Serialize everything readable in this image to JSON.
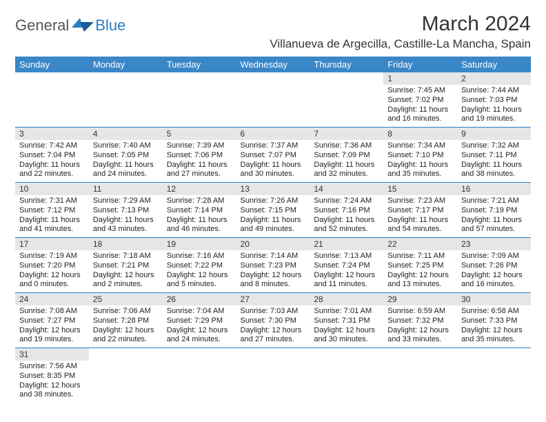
{
  "logo": {
    "text1": "General",
    "text2": "Blue"
  },
  "title": "March 2024",
  "location": "Villanueva de Argecilla, Castille-La Mancha, Spain",
  "colors": {
    "header_bg": "#3a87c8",
    "row_border": "#2b7fc4",
    "daynum_bg": "#e6e6e6",
    "body_text": "#222222"
  },
  "font": {
    "family": "Arial",
    "header_size": 13,
    "cell_size": 11,
    "title_size": 30,
    "location_size": 17
  },
  "day_headers": [
    "Sunday",
    "Monday",
    "Tuesday",
    "Wednesday",
    "Thursday",
    "Friday",
    "Saturday"
  ],
  "weeks": [
    [
      null,
      null,
      null,
      null,
      null,
      {
        "n": "1",
        "sunrise": "7:45 AM",
        "sunset": "7:02 PM",
        "daylight": "11 hours and 16 minutes."
      },
      {
        "n": "2",
        "sunrise": "7:44 AM",
        "sunset": "7:03 PM",
        "daylight": "11 hours and 19 minutes."
      }
    ],
    [
      {
        "n": "3",
        "sunrise": "7:42 AM",
        "sunset": "7:04 PM",
        "daylight": "11 hours and 22 minutes."
      },
      {
        "n": "4",
        "sunrise": "7:40 AM",
        "sunset": "7:05 PM",
        "daylight": "11 hours and 24 minutes."
      },
      {
        "n": "5",
        "sunrise": "7:39 AM",
        "sunset": "7:06 PM",
        "daylight": "11 hours and 27 minutes."
      },
      {
        "n": "6",
        "sunrise": "7:37 AM",
        "sunset": "7:07 PM",
        "daylight": "11 hours and 30 minutes."
      },
      {
        "n": "7",
        "sunrise": "7:36 AM",
        "sunset": "7:09 PM",
        "daylight": "11 hours and 32 minutes."
      },
      {
        "n": "8",
        "sunrise": "7:34 AM",
        "sunset": "7:10 PM",
        "daylight": "11 hours and 35 minutes."
      },
      {
        "n": "9",
        "sunrise": "7:32 AM",
        "sunset": "7:11 PM",
        "daylight": "11 hours and 38 minutes."
      }
    ],
    [
      {
        "n": "10",
        "sunrise": "7:31 AM",
        "sunset": "7:12 PM",
        "daylight": "11 hours and 41 minutes."
      },
      {
        "n": "11",
        "sunrise": "7:29 AM",
        "sunset": "7:13 PM",
        "daylight": "11 hours and 43 minutes."
      },
      {
        "n": "12",
        "sunrise": "7:28 AM",
        "sunset": "7:14 PM",
        "daylight": "11 hours and 46 minutes."
      },
      {
        "n": "13",
        "sunrise": "7:26 AM",
        "sunset": "7:15 PM",
        "daylight": "11 hours and 49 minutes."
      },
      {
        "n": "14",
        "sunrise": "7:24 AM",
        "sunset": "7:16 PM",
        "daylight": "11 hours and 52 minutes."
      },
      {
        "n": "15",
        "sunrise": "7:23 AM",
        "sunset": "7:17 PM",
        "daylight": "11 hours and 54 minutes."
      },
      {
        "n": "16",
        "sunrise": "7:21 AM",
        "sunset": "7:19 PM",
        "daylight": "11 hours and 57 minutes."
      }
    ],
    [
      {
        "n": "17",
        "sunrise": "7:19 AM",
        "sunset": "7:20 PM",
        "daylight": "12 hours and 0 minutes."
      },
      {
        "n": "18",
        "sunrise": "7:18 AM",
        "sunset": "7:21 PM",
        "daylight": "12 hours and 2 minutes."
      },
      {
        "n": "19",
        "sunrise": "7:16 AM",
        "sunset": "7:22 PM",
        "daylight": "12 hours and 5 minutes."
      },
      {
        "n": "20",
        "sunrise": "7:14 AM",
        "sunset": "7:23 PM",
        "daylight": "12 hours and 8 minutes."
      },
      {
        "n": "21",
        "sunrise": "7:13 AM",
        "sunset": "7:24 PM",
        "daylight": "12 hours and 11 minutes."
      },
      {
        "n": "22",
        "sunrise": "7:11 AM",
        "sunset": "7:25 PM",
        "daylight": "12 hours and 13 minutes."
      },
      {
        "n": "23",
        "sunrise": "7:09 AM",
        "sunset": "7:26 PM",
        "daylight": "12 hours and 16 minutes."
      }
    ],
    [
      {
        "n": "24",
        "sunrise": "7:08 AM",
        "sunset": "7:27 PM",
        "daylight": "12 hours and 19 minutes."
      },
      {
        "n": "25",
        "sunrise": "7:06 AM",
        "sunset": "7:28 PM",
        "daylight": "12 hours and 22 minutes."
      },
      {
        "n": "26",
        "sunrise": "7:04 AM",
        "sunset": "7:29 PM",
        "daylight": "12 hours and 24 minutes."
      },
      {
        "n": "27",
        "sunrise": "7:03 AM",
        "sunset": "7:30 PM",
        "daylight": "12 hours and 27 minutes."
      },
      {
        "n": "28",
        "sunrise": "7:01 AM",
        "sunset": "7:31 PM",
        "daylight": "12 hours and 30 minutes."
      },
      {
        "n": "29",
        "sunrise": "6:59 AM",
        "sunset": "7:32 PM",
        "daylight": "12 hours and 33 minutes."
      },
      {
        "n": "30",
        "sunrise": "6:58 AM",
        "sunset": "7:33 PM",
        "daylight": "12 hours and 35 minutes."
      }
    ],
    [
      {
        "n": "31",
        "sunrise": "7:56 AM",
        "sunset": "8:35 PM",
        "daylight": "12 hours and 38 minutes."
      },
      null,
      null,
      null,
      null,
      null,
      null
    ]
  ],
  "labels": {
    "sunrise": "Sunrise:",
    "sunset": "Sunset:",
    "daylight": "Daylight:"
  }
}
